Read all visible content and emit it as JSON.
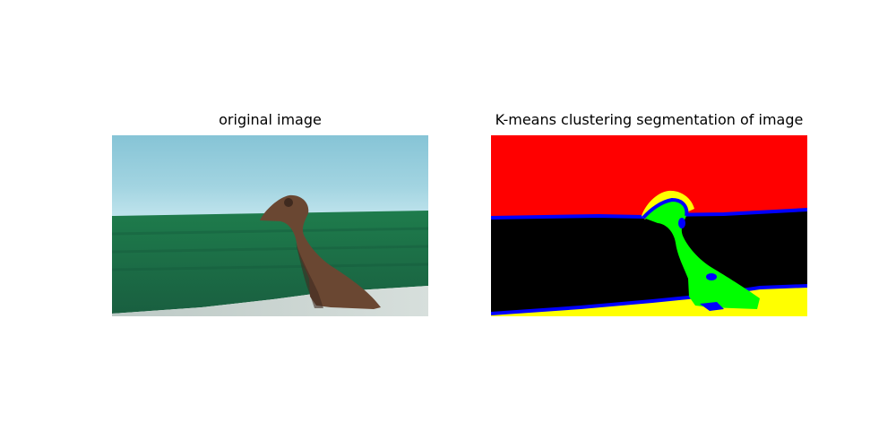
{
  "figure": {
    "left_title": "original image",
    "right_title": "K-means clustering segmentation of image"
  },
  "original_image": {
    "description_colors": {
      "sky": "#8cc8d8",
      "sky_light": "#b8e0ea",
      "grass": "#1f6e4a",
      "grass_dark": "#155638",
      "ground": "#c8d3cf",
      "dog": "#6b4a35",
      "dog_dark": "#3e2a1f"
    }
  },
  "segmentation": {
    "cluster_colors": {
      "sky": "#ff0000",
      "grass": "#000000",
      "ground": "#ffff00",
      "dog": "#00ff00",
      "boundary": "#0000ff"
    }
  }
}
